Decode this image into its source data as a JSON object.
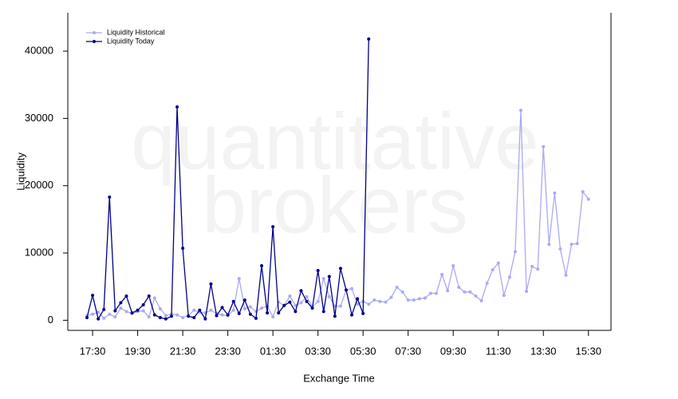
{
  "chart_data": {
    "type": "line",
    "watermark": [
      "quantitative",
      "brokers"
    ],
    "y_label": "Liquidity",
    "x_label": "Exchange Time",
    "x": [
      "17:15",
      "17:30",
      "17:45",
      "18:00",
      "18:15",
      "18:30",
      "18:45",
      "19:00",
      "19:15",
      "19:30",
      "19:45",
      "20:00",
      "20:15",
      "20:30",
      "20:45",
      "21:00",
      "21:15",
      "21:30",
      "21:45",
      "22:00",
      "22:15",
      "22:30",
      "22:45",
      "23:00",
      "23:15",
      "23:30",
      "23:45",
      "00:00",
      "00:15",
      "00:30",
      "00:45",
      "01:00",
      "01:15",
      "01:30",
      "01:45",
      "02:00",
      "02:15",
      "02:30",
      "02:45",
      "03:00",
      "03:15",
      "03:30",
      "03:45",
      "04:00",
      "04:15",
      "04:30",
      "04:45",
      "05:00",
      "05:15",
      "05:30",
      "05:45",
      "06:00",
      "06:15",
      "06:30",
      "06:45",
      "07:00",
      "07:15",
      "07:30",
      "07:45",
      "08:00",
      "08:15",
      "08:30",
      "08:45",
      "09:00",
      "09:15",
      "09:30",
      "09:45",
      "10:00",
      "10:15",
      "10:30",
      "10:45",
      "11:00",
      "11:15",
      "11:30",
      "11:45",
      "12:00",
      "12:15",
      "12:30",
      "12:45",
      "13:00",
      "13:15",
      "13:30",
      "13:45",
      "14:00",
      "14:15",
      "14:30",
      "14:45",
      "15:00",
      "15:15",
      "15:30"
    ],
    "series": [
      {
        "name": "Liquidity Historical",
        "color": "#aaaaf2",
        "values": [
          700,
          900,
          1200,
          300,
          900,
          500,
          1800,
          1300,
          1000,
          1300,
          1400,
          500,
          3300,
          1700,
          700,
          900,
          800,
          400,
          700,
          1500,
          1200,
          1100,
          1500,
          1000,
          800,
          700,
          1500,
          6200,
          1700,
          2000,
          1300,
          1800,
          2100,
          500,
          2700,
          2200,
          3600,
          2200,
          2600,
          3500,
          2000,
          2800,
          6200,
          3500,
          2100,
          2100,
          4500,
          4700,
          2400,
          2800,
          2400,
          3000,
          2800,
          2700,
          3400,
          4900,
          4200,
          3000,
          3000,
          3200,
          3300,
          4000,
          4000,
          6800,
          4400,
          8100,
          4900,
          4200,
          4200,
          3600,
          2900,
          5500,
          7500,
          8500,
          3700,
          6400,
          10200,
          31200,
          4300,
          8000,
          7600,
          25800,
          11300,
          18900,
          10600,
          6700,
          11300,
          11400,
          19100,
          18000
        ]
      },
      {
        "name": "Liquidity Today",
        "color": "#00008b",
        "values": [
          400,
          3700,
          200,
          1600,
          18300,
          1400,
          2600,
          3600,
          1100,
          1500,
          2300,
          3600,
          800,
          400,
          200,
          600,
          31700,
          10700,
          600,
          400,
          1500,
          200,
          5400,
          700,
          1900,
          800,
          2800,
          1000,
          3000,
          900,
          300,
          8100,
          1100,
          13900,
          1100,
          2200,
          2700,
          1300,
          4400,
          2800,
          1800,
          7400,
          1300,
          6500,
          600,
          7700,
          4500,
          800,
          3200,
          1000,
          41800,
          null,
          null,
          null,
          null,
          null,
          null,
          null,
          null,
          null,
          null,
          null,
          null,
          null,
          null,
          null,
          null,
          null,
          null,
          null,
          null,
          null,
          null,
          null,
          null,
          null,
          null,
          null,
          null,
          null,
          null,
          null,
          null,
          null,
          null,
          null,
          null,
          null,
          null,
          null
        ]
      }
    ],
    "xlim": [
      "16:24",
      "16:30"
    ],
    "xticks": [
      "17:30",
      "19:30",
      "21:30",
      "23:30",
      "01:30",
      "03:30",
      "05:30",
      "07:30",
      "09:30",
      "11:30",
      "13:30",
      "15:30"
    ],
    "ylim": [
      -1500,
      45700
    ],
    "yticks": [
      0,
      10000,
      20000,
      30000,
      40000
    ],
    "grid": false,
    "legend": "top-left"
  }
}
